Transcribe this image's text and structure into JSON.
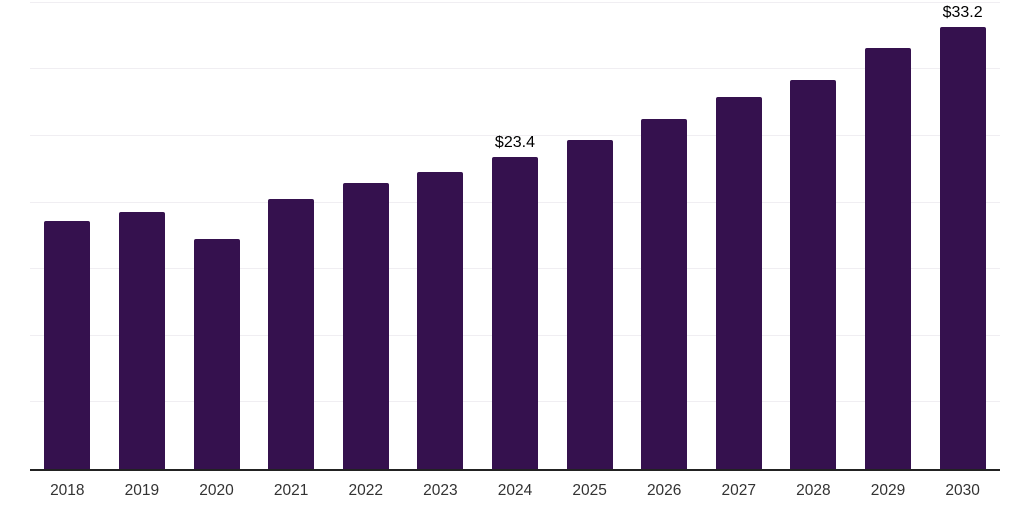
{
  "chart_data": {
    "type": "bar",
    "title": "",
    "xlabel": "",
    "ylabel": "",
    "categories": [
      "2018",
      "2019",
      "2020",
      "2021",
      "2022",
      "2023",
      "2024",
      "2025",
      "2026",
      "2027",
      "2028",
      "2029",
      "2030"
    ],
    "values": [
      18.6,
      19.3,
      17.3,
      20.3,
      21.5,
      22.3,
      23.4,
      24.7,
      26.3,
      27.9,
      29.2,
      31.6,
      33.2
    ],
    "labeled_points": [
      {
        "category": "2024",
        "label": "$23.4"
      },
      {
        "category": "2030",
        "label": "$33.2"
      }
    ],
    "ylim": [
      0,
      35.2
    ],
    "gridline_step": 5,
    "grid": "horizontal-only",
    "legend": "none",
    "y_tick_labels_visible": false
  },
  "colors": {
    "bar": "#35114e",
    "gridline": "#f0eef2",
    "axis_line": "#222222",
    "tick_label": "#333333",
    "data_label": "#000000",
    "background": "#ffffff"
  }
}
